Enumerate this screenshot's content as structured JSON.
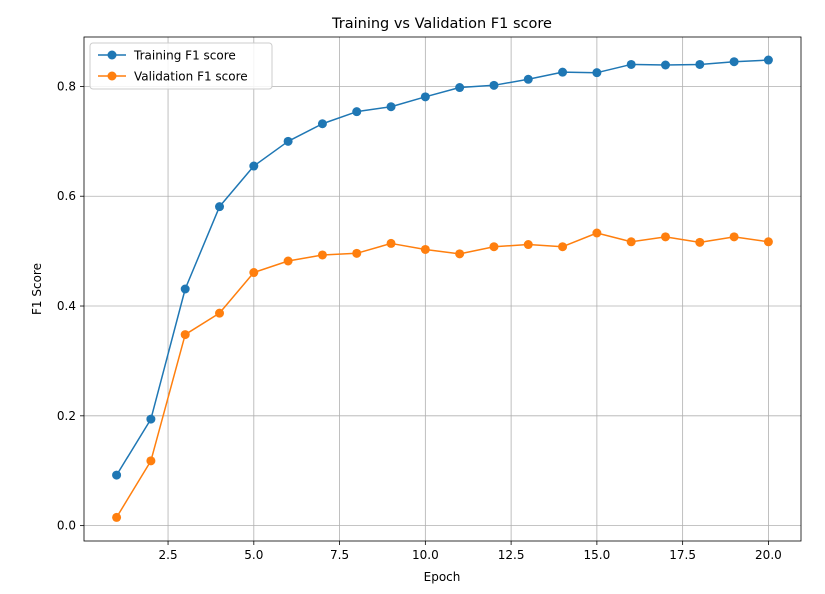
{
  "chart_data": {
    "type": "line",
    "title": "Training vs Validation F1 score",
    "xlabel": "Epoch",
    "ylabel": "F1 Score",
    "xlim": [
      0.05,
      20.95
    ],
    "ylim": [
      -0.028,
      0.89
    ],
    "xticks": [
      2.5,
      5.0,
      7.5,
      10.0,
      12.5,
      15.0,
      17.5,
      20.0
    ],
    "xtick_labels": [
      "2.5",
      "5.0",
      "7.5",
      "10.0",
      "12.5",
      "15.0",
      "17.5",
      "20.0"
    ],
    "yticks": [
      0.0,
      0.2,
      0.4,
      0.6,
      0.8
    ],
    "ytick_labels": [
      "0.0",
      "0.2",
      "0.4",
      "0.6",
      "0.8"
    ],
    "grid": true,
    "legend_position": "top-left",
    "x": [
      1,
      2,
      3,
      4,
      5,
      6,
      7,
      8,
      9,
      10,
      11,
      12,
      13,
      14,
      15,
      16,
      17,
      18,
      19,
      20
    ],
    "series": [
      {
        "name": "Training F1 score",
        "color": "#1f77b4",
        "values": [
          0.092,
          0.194,
          0.431,
          0.581,
          0.655,
          0.7,
          0.732,
          0.754,
          0.763,
          0.781,
          0.798,
          0.802,
          0.813,
          0.826,
          0.825,
          0.84,
          0.839,
          0.84,
          0.845,
          0.848
        ]
      },
      {
        "name": "Validation F1 score",
        "color": "#ff7f0e",
        "values": [
          0.015,
          0.118,
          0.348,
          0.387,
          0.461,
          0.482,
          0.493,
          0.496,
          0.514,
          0.503,
          0.495,
          0.508,
          0.512,
          0.508,
          0.533,
          0.517,
          0.526,
          0.516,
          0.526,
          0.517
        ]
      }
    ]
  }
}
